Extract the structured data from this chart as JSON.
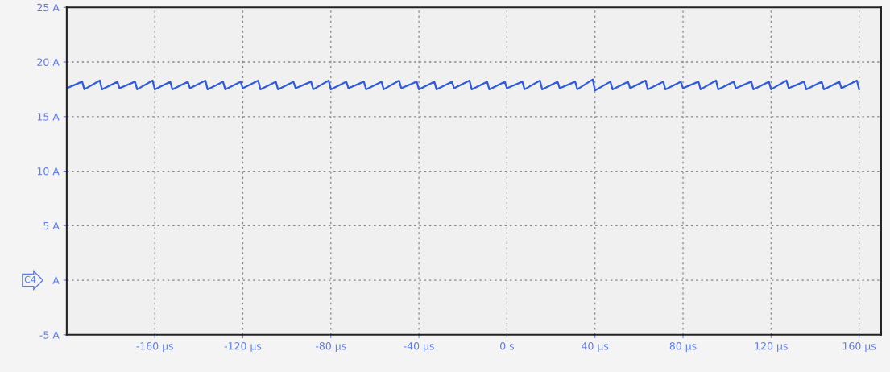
{
  "chart_data": {
    "type": "line",
    "x": [
      -200,
      -193,
      -192,
      -185,
      -184,
      -177,
      -176,
      -169,
      -168,
      -161,
      -160,
      -153,
      -152,
      -145,
      -144,
      -137,
      -136,
      -129,
      -128,
      -121,
      -120,
      -113,
      -112,
      -105,
      -104,
      -97,
      -96,
      -89,
      -88,
      -81,
      -80,
      -73,
      -72,
      -65,
      -64,
      -57,
      -56,
      -49,
      -48,
      -41,
      -40,
      -33,
      -32,
      -25,
      -24,
      -17,
      -16,
      -9,
      -8,
      -1,
      0,
      7,
      8,
      15,
      16,
      23,
      24,
      31,
      32,
      39,
      40,
      47,
      48,
      55,
      56,
      63,
      64,
      71,
      72,
      79,
      80,
      87,
      88,
      95,
      96,
      103,
      104,
      111,
      112,
      119,
      120,
      127,
      128,
      135,
      136,
      143,
      144,
      151,
      152,
      159,
      160
    ],
    "series": [
      {
        "color": "#2f5be0",
        "values": [
          17.6,
          18.2,
          17.5,
          18.3,
          17.5,
          18.2,
          17.6,
          18.2,
          17.5,
          18.3,
          17.5,
          18.2,
          17.5,
          18.2,
          17.6,
          18.3,
          17.5,
          18.2,
          17.5,
          18.2,
          17.6,
          18.3,
          17.5,
          18.2,
          17.5,
          18.2,
          17.6,
          18.2,
          17.5,
          18.3,
          17.5,
          18.2,
          17.6,
          18.2,
          17.5,
          18.2,
          17.5,
          18.3,
          17.6,
          18.2,
          17.5,
          18.2,
          17.5,
          18.2,
          17.6,
          18.3,
          17.5,
          18.2,
          17.5,
          18.2,
          17.6,
          18.2,
          17.5,
          18.3,
          17.5,
          18.2,
          17.6,
          18.2,
          17.5,
          18.4,
          17.4,
          18.2,
          17.5,
          18.2,
          17.6,
          18.3,
          17.5,
          18.2,
          17.5,
          18.2,
          17.6,
          18.2,
          17.5,
          18.3,
          17.5,
          18.2,
          17.6,
          18.2,
          17.5,
          18.2,
          17.5,
          18.3,
          17.6,
          18.2,
          17.5,
          18.2,
          17.5,
          18.2,
          17.6,
          18.3,
          17.5
        ]
      }
    ],
    "xlim": [
      -200,
      170
    ],
    "ylim": [
      -5,
      25
    ],
    "xticks": [
      {
        "value": -160,
        "label": "-160 µs"
      },
      {
        "value": -120,
        "label": "-120 µs"
      },
      {
        "value": -80,
        "label": "-80 µs"
      },
      {
        "value": -40,
        "label": "-40 µs"
      },
      {
        "value": 0,
        "label": "0 s"
      },
      {
        "value": 40,
        "label": "40 µs"
      },
      {
        "value": 80,
        "label": "80 µs"
      },
      {
        "value": 120,
        "label": "120 µs"
      },
      {
        "value": 160,
        "label": "160 µs"
      }
    ],
    "yticks": [
      {
        "value": -5,
        "label": "-5 A"
      },
      {
        "value": 0,
        "label": "A"
      },
      {
        "value": 5,
        "label": "5 A"
      },
      {
        "value": 10,
        "label": "10 A"
      },
      {
        "value": 15,
        "label": "15 A"
      },
      {
        "value": 20,
        "label": "20 A"
      },
      {
        "value": 25,
        "label": "25 A"
      }
    ],
    "grid": true,
    "marker": "none",
    "line_style": "solid",
    "annotations": [
      "C4"
    ]
  }
}
